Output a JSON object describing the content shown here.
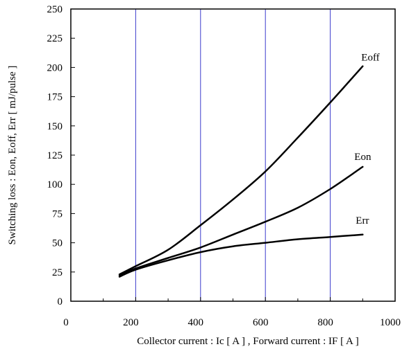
{
  "chart_data": {
    "type": "line",
    "xlabel": "Collector current : Ic [ A ] , Forward current : IF [ A ]",
    "ylabel": "Switching loss : Eon, Eoff, Err [ mJ/pulse ]",
    "xlim": [
      0,
      1000
    ],
    "ylim": [
      0,
      250
    ],
    "x_ticks": [
      0,
      200,
      400,
      600,
      800,
      1000
    ],
    "y_ticks": [
      0,
      25,
      50,
      75,
      100,
      125,
      150,
      175,
      200,
      225,
      250
    ],
    "grid": "vertical major lines",
    "colors": {
      "grid": "#3a3acc",
      "series": "#000000"
    },
    "series": [
      {
        "name": "Eoff",
        "x": [
          150,
          200,
          300,
          400,
          500,
          600,
          700,
          800,
          900
        ],
        "y": [
          23,
          30,
          44,
          65,
          87,
          111,
          140,
          170,
          201
        ]
      },
      {
        "name": "Eon",
        "x": [
          150,
          200,
          300,
          400,
          500,
          600,
          700,
          800,
          900
        ],
        "y": [
          22,
          28,
          37,
          46,
          57,
          68,
          80,
          96,
          115
        ]
      },
      {
        "name": "Err",
        "x": [
          150,
          200,
          300,
          400,
          500,
          600,
          700,
          800,
          900
        ],
        "y": [
          21,
          27,
          35,
          42,
          47,
          50,
          53,
          55,
          57
        ]
      }
    ]
  }
}
